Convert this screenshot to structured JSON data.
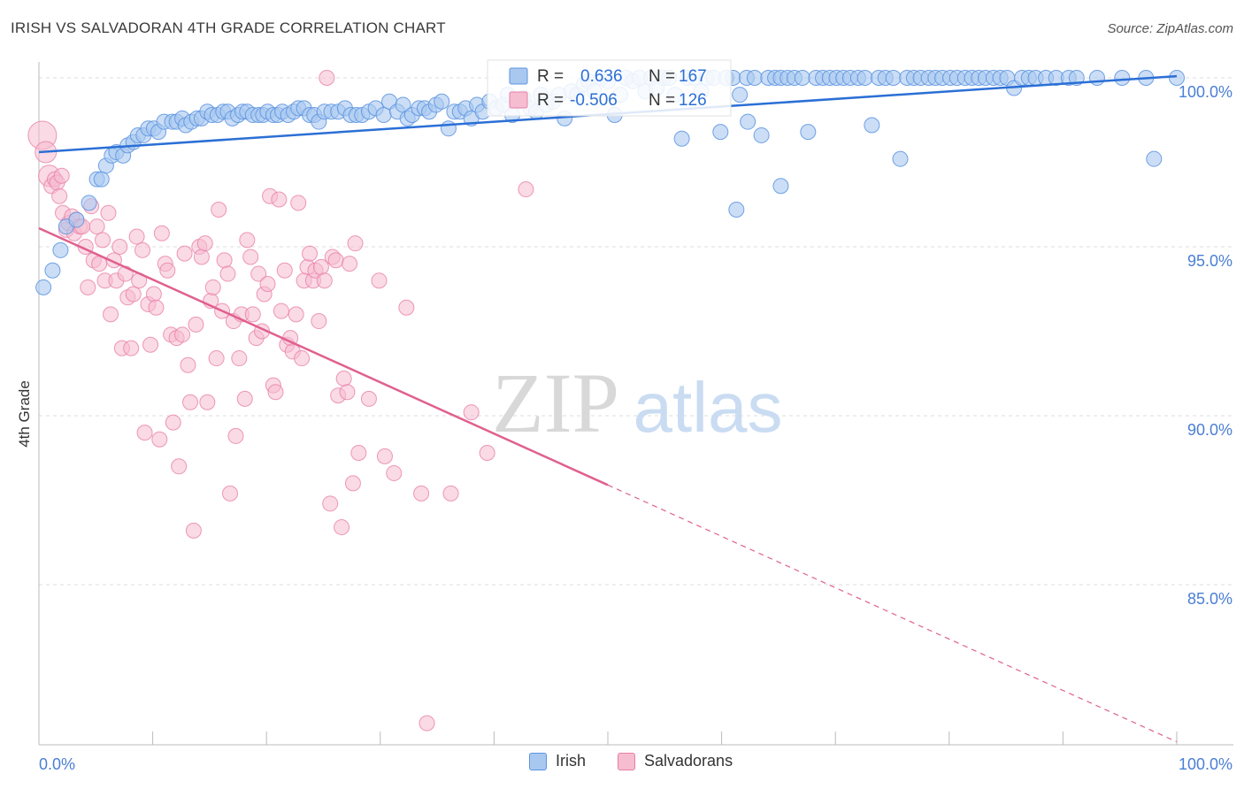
{
  "header": {
    "title": "IRISH VS SALVADORAN 4TH GRADE CORRELATION CHART",
    "source": "Source: ZipAtlas.com"
  },
  "watermark": {
    "zip": "ZIP",
    "atlas": "atlas"
  },
  "legend_top": {
    "rows": [
      {
        "r_label": "R =",
        "r_value": "0.636",
        "n_label": "N =",
        "n_value": "167"
      },
      {
        "r_label": "R =",
        "r_value": "-0.506",
        "n_label": "N =",
        "n_value": "126"
      }
    ]
  },
  "legend_bottom": {
    "irish": "Irish",
    "salvadorans": "Salvadorans"
  },
  "colors": {
    "irish_fill": "#a9c8f0",
    "irish_stroke": "#5b93e0",
    "irish_line": "#2b6fd6",
    "salv_fill": "#f6bcd0",
    "salv_stroke": "#e87fa6",
    "salv_line": "#e0608e",
    "tick_label": "#4a7fd4",
    "grid": "#dcdcdc"
  },
  "chart_data": {
    "type": "scatter",
    "title": "IRISH VS SALVADORAN 4TH GRADE CORRELATION CHART",
    "xlabel": "",
    "ylabel": "4th Grade",
    "xlim": [
      0,
      100
    ],
    "ylim": [
      80.5,
      100.3
    ],
    "x_tick_labels": [
      "0.0%",
      "100.0%"
    ],
    "y_ticks": [
      85,
      90,
      95,
      100
    ],
    "y_tick_labels": [
      "85.0%",
      "90.0%",
      "95.0%",
      "100.0%"
    ],
    "grid": "horizontal dashed",
    "legend_position": "top-center",
    "series": [
      {
        "name": "Irish",
        "R": 0.636,
        "N": 167,
        "trend": {
          "x": [
            0,
            100
          ],
          "y": [
            97.8,
            100.05
          ],
          "style": "solid"
        },
        "points": [
          [
            0.4,
            93.8
          ],
          [
            1.2,
            94.3
          ],
          [
            1.9,
            94.9
          ],
          [
            2.4,
            95.6
          ],
          [
            3.3,
            95.8
          ],
          [
            4.4,
            96.3
          ],
          [
            5.1,
            97.0
          ],
          [
            5.5,
            97.0
          ],
          [
            5.9,
            97.4
          ],
          [
            6.4,
            97.7
          ],
          [
            6.8,
            97.8
          ],
          [
            7.4,
            97.7
          ],
          [
            7.8,
            98.0
          ],
          [
            8.3,
            98.1
          ],
          [
            8.7,
            98.3
          ],
          [
            9.2,
            98.3
          ],
          [
            9.6,
            98.5
          ],
          [
            10.1,
            98.5
          ],
          [
            10.5,
            98.4
          ],
          [
            11.0,
            98.7
          ],
          [
            11.7,
            98.7
          ],
          [
            12.1,
            98.7
          ],
          [
            12.6,
            98.8
          ],
          [
            12.9,
            98.6
          ],
          [
            13.4,
            98.7
          ],
          [
            13.9,
            98.8
          ],
          [
            14.3,
            98.8
          ],
          [
            14.8,
            99.0
          ],
          [
            15.2,
            98.9
          ],
          [
            15.7,
            98.9
          ],
          [
            16.2,
            99.0
          ],
          [
            16.6,
            99.0
          ],
          [
            17.0,
            98.8
          ],
          [
            17.5,
            98.9
          ],
          [
            17.9,
            99.0
          ],
          [
            18.3,
            99.0
          ],
          [
            18.8,
            98.9
          ],
          [
            19.3,
            98.9
          ],
          [
            19.7,
            98.9
          ],
          [
            20.1,
            99.0
          ],
          [
            20.6,
            98.9
          ],
          [
            21.0,
            98.9
          ],
          [
            21.4,
            99.0
          ],
          [
            21.9,
            98.9
          ],
          [
            22.4,
            99.0
          ],
          [
            22.8,
            99.1
          ],
          [
            23.3,
            99.1
          ],
          [
            23.8,
            98.9
          ],
          [
            24.2,
            98.9
          ],
          [
            24.6,
            98.7
          ],
          [
            25.1,
            99.0
          ],
          [
            25.7,
            99.0
          ],
          [
            26.3,
            99.0
          ],
          [
            26.9,
            99.1
          ],
          [
            27.4,
            98.9
          ],
          [
            27.9,
            98.9
          ],
          [
            28.4,
            98.9
          ],
          [
            29.0,
            99.0
          ],
          [
            29.6,
            99.1
          ],
          [
            30.3,
            98.9
          ],
          [
            30.8,
            99.3
          ],
          [
            31.5,
            99.0
          ],
          [
            32.0,
            99.2
          ],
          [
            32.4,
            98.8
          ],
          [
            32.8,
            98.9
          ],
          [
            33.4,
            99.1
          ],
          [
            33.9,
            99.1
          ],
          [
            34.3,
            99.0
          ],
          [
            34.9,
            99.2
          ],
          [
            35.4,
            99.3
          ],
          [
            36.0,
            98.5
          ],
          [
            36.5,
            99.0
          ],
          [
            37.0,
            99.0
          ],
          [
            37.5,
            99.1
          ],
          [
            38.0,
            98.8
          ],
          [
            38.5,
            99.2
          ],
          [
            39.0,
            99.0
          ],
          [
            39.6,
            99.3
          ],
          [
            40.2,
            99.1
          ],
          [
            40.8,
            99.2
          ],
          [
            41.2,
            99.5
          ],
          [
            41.6,
            98.9
          ],
          [
            42.1,
            99.3
          ],
          [
            42.6,
            99.4
          ],
          [
            43.2,
            99.1
          ],
          [
            43.7,
            99.0
          ],
          [
            44.1,
            99.5
          ],
          [
            44.6,
            99.2
          ],
          [
            45.2,
            99.3
          ],
          [
            45.7,
            99.5
          ],
          [
            46.2,
            98.8
          ],
          [
            46.8,
            99.6
          ],
          [
            47.3,
            99.5
          ],
          [
            47.9,
            99.8
          ],
          [
            48.3,
            99.9
          ],
          [
            48.8,
            99.6
          ],
          [
            49.4,
            100.0
          ],
          [
            50.0,
            99.9
          ],
          [
            50.6,
            98.9
          ],
          [
            51.1,
            99.5
          ],
          [
            51.6,
            100.0
          ],
          [
            52.2,
            99.9
          ],
          [
            52.8,
            100.0
          ],
          [
            53.3,
            99.6
          ],
          [
            53.8,
            100.0
          ],
          [
            54.3,
            99.7
          ],
          [
            54.9,
            100.0
          ],
          [
            55.4,
            100.0
          ],
          [
            55.9,
            99.5
          ],
          [
            56.5,
            98.2
          ],
          [
            57.0,
            100.0
          ],
          [
            57.6,
            100.0
          ],
          [
            58.2,
            99.6
          ],
          [
            58.7,
            100.0
          ],
          [
            59.3,
            100.0
          ],
          [
            59.9,
            98.4
          ],
          [
            60.4,
            100.0
          ],
          [
            61.0,
            100.0
          ],
          [
            61.6,
            99.5
          ],
          [
            62.2,
            100.0
          ],
          [
            62.9,
            100.0
          ],
          [
            63.5,
            98.3
          ],
          [
            64.1,
            100.0
          ],
          [
            64.7,
            100.0
          ],
          [
            65.2,
            100.0
          ],
          [
            65.8,
            100.0
          ],
          [
            66.4,
            100.0
          ],
          [
            67.1,
            100.0
          ],
          [
            67.6,
            98.4
          ],
          [
            68.3,
            100.0
          ],
          [
            68.9,
            100.0
          ],
          [
            69.5,
            100.0
          ],
          [
            70.1,
            100.0
          ],
          [
            70.7,
            100.0
          ],
          [
            71.3,
            100.0
          ],
          [
            72.0,
            100.0
          ],
          [
            72.6,
            100.0
          ],
          [
            73.2,
            98.6
          ],
          [
            73.8,
            100.0
          ],
          [
            74.4,
            100.0
          ],
          [
            75.1,
            100.0
          ],
          [
            75.7,
            97.6
          ],
          [
            76.3,
            100.0
          ],
          [
            76.9,
            100.0
          ],
          [
            77.5,
            100.0
          ],
          [
            78.2,
            100.0
          ],
          [
            78.8,
            100.0
          ],
          [
            79.4,
            100.0
          ],
          [
            80.1,
            100.0
          ],
          [
            80.7,
            100.0
          ],
          [
            81.4,
            100.0
          ],
          [
            82.0,
            100.0
          ],
          [
            82.6,
            100.0
          ],
          [
            83.2,
            100.0
          ],
          [
            83.9,
            100.0
          ],
          [
            84.5,
            100.0
          ],
          [
            85.1,
            100.0
          ],
          [
            85.7,
            99.7
          ],
          [
            86.4,
            100.0
          ],
          [
            87.0,
            100.0
          ],
          [
            87.6,
            100.0
          ],
          [
            88.5,
            100.0
          ],
          [
            89.4,
            100.0
          ],
          [
            90.5,
            100.0
          ],
          [
            91.2,
            100.0
          ],
          [
            93.0,
            100.0
          ],
          [
            95.2,
            100.0
          ],
          [
            97.3,
            100.0
          ],
          [
            98.0,
            97.6
          ],
          [
            100.0,
            100.0
          ],
          [
            61.3,
            96.1
          ],
          [
            65.2,
            96.8
          ],
          [
            62.3,
            98.7
          ]
        ]
      },
      {
        "name": "Salvadorans",
        "R": -0.506,
        "N": 126,
        "trend": {
          "x": [
            0,
            50
          ],
          "y": [
            95.55,
            87.95
          ],
          "style": "solid",
          "extended": {
            "x": [
              50,
              100
            ],
            "y": [
              87.95,
              80.35
            ],
            "style": "dashed"
          }
        },
        "points": [
          [
            0.3,
            98.3
          ],
          [
            0.6,
            97.8
          ],
          [
            0.9,
            97.1
          ],
          [
            1.1,
            96.8
          ],
          [
            1.4,
            97.0
          ],
          [
            1.6,
            96.9
          ],
          [
            1.8,
            96.5
          ],
          [
            2.1,
            96.0
          ],
          [
            2.4,
            95.5
          ],
          [
            2.6,
            95.7
          ],
          [
            2.9,
            95.9
          ],
          [
            3.1,
            95.4
          ],
          [
            3.3,
            95.8
          ],
          [
            3.6,
            95.6
          ],
          [
            3.8,
            95.6
          ],
          [
            4.1,
            95.0
          ],
          [
            4.3,
            93.8
          ],
          [
            4.6,
            96.2
          ],
          [
            4.8,
            94.6
          ],
          [
            5.1,
            95.6
          ],
          [
            5.3,
            94.5
          ],
          [
            5.6,
            95.2
          ],
          [
            5.8,
            94.0
          ],
          [
            6.1,
            96.0
          ],
          [
            6.3,
            93.0
          ],
          [
            6.6,
            94.6
          ],
          [
            6.8,
            94.0
          ],
          [
            7.1,
            95.0
          ],
          [
            7.3,
            92.0
          ],
          [
            7.6,
            94.2
          ],
          [
            7.8,
            93.5
          ],
          [
            8.1,
            92.0
          ],
          [
            8.3,
            93.6
          ],
          [
            8.6,
            95.3
          ],
          [
            8.8,
            94.0
          ],
          [
            9.1,
            94.9
          ],
          [
            9.3,
            89.5
          ],
          [
            9.6,
            93.3
          ],
          [
            9.8,
            92.1
          ],
          [
            10.1,
            93.6
          ],
          [
            10.3,
            93.2
          ],
          [
            10.6,
            89.3
          ],
          [
            10.8,
            95.4
          ],
          [
            11.1,
            94.5
          ],
          [
            11.3,
            94.3
          ],
          [
            11.6,
            92.4
          ],
          [
            11.8,
            89.8
          ],
          [
            12.1,
            92.3
          ],
          [
            12.3,
            88.5
          ],
          [
            12.6,
            92.4
          ],
          [
            12.8,
            94.8
          ],
          [
            13.1,
            91.5
          ],
          [
            13.3,
            90.4
          ],
          [
            13.6,
            86.6
          ],
          [
            13.8,
            92.7
          ],
          [
            14.1,
            95.0
          ],
          [
            14.3,
            94.7
          ],
          [
            14.6,
            95.1
          ],
          [
            14.8,
            90.4
          ],
          [
            15.1,
            93.4
          ],
          [
            15.3,
            93.8
          ],
          [
            15.6,
            91.7
          ],
          [
            15.8,
            96.1
          ],
          [
            16.1,
            93.1
          ],
          [
            16.3,
            94.6
          ],
          [
            16.6,
            94.2
          ],
          [
            16.8,
            87.7
          ],
          [
            17.1,
            92.8
          ],
          [
            17.3,
            89.4
          ],
          [
            17.6,
            91.7
          ],
          [
            17.8,
            93.0
          ],
          [
            18.1,
            90.5
          ],
          [
            18.3,
            95.2
          ],
          [
            18.6,
            94.7
          ],
          [
            18.8,
            93.0
          ],
          [
            19.1,
            92.3
          ],
          [
            19.3,
            94.2
          ],
          [
            19.6,
            92.5
          ],
          [
            19.8,
            93.6
          ],
          [
            20.1,
            93.9
          ],
          [
            20.3,
            96.5
          ],
          [
            20.6,
            90.9
          ],
          [
            20.8,
            90.7
          ],
          [
            21.1,
            96.4
          ],
          [
            21.3,
            93.1
          ],
          [
            21.6,
            94.3
          ],
          [
            21.8,
            92.1
          ],
          [
            22.1,
            92.3
          ],
          [
            22.3,
            91.9
          ],
          [
            22.6,
            93.0
          ],
          [
            22.8,
            96.3
          ],
          [
            23.1,
            91.7
          ],
          [
            23.3,
            94.0
          ],
          [
            23.6,
            94.4
          ],
          [
            23.8,
            94.8
          ],
          [
            24.1,
            94.0
          ],
          [
            24.3,
            94.3
          ],
          [
            24.6,
            92.8
          ],
          [
            24.8,
            94.4
          ],
          [
            25.1,
            94.0
          ],
          [
            25.3,
            100.0
          ],
          [
            25.6,
            87.4
          ],
          [
            25.8,
            94.7
          ],
          [
            26.1,
            94.6
          ],
          [
            26.3,
            90.6
          ],
          [
            26.6,
            86.7
          ],
          [
            26.8,
            91.1
          ],
          [
            27.1,
            90.7
          ],
          [
            27.3,
            94.5
          ],
          [
            27.6,
            88.0
          ],
          [
            27.8,
            95.1
          ],
          [
            28.1,
            88.9
          ],
          [
            29.0,
            90.5
          ],
          [
            29.9,
            94.0
          ],
          [
            30.4,
            88.8
          ],
          [
            31.2,
            88.3
          ],
          [
            32.3,
            93.2
          ],
          [
            33.6,
            87.7
          ],
          [
            34.1,
            80.9
          ],
          [
            36.2,
            87.7
          ],
          [
            38.0,
            90.1
          ],
          [
            39.4,
            88.9
          ],
          [
            42.8,
            96.7
          ],
          [
            2.0,
            97.1
          ]
        ]
      }
    ]
  }
}
